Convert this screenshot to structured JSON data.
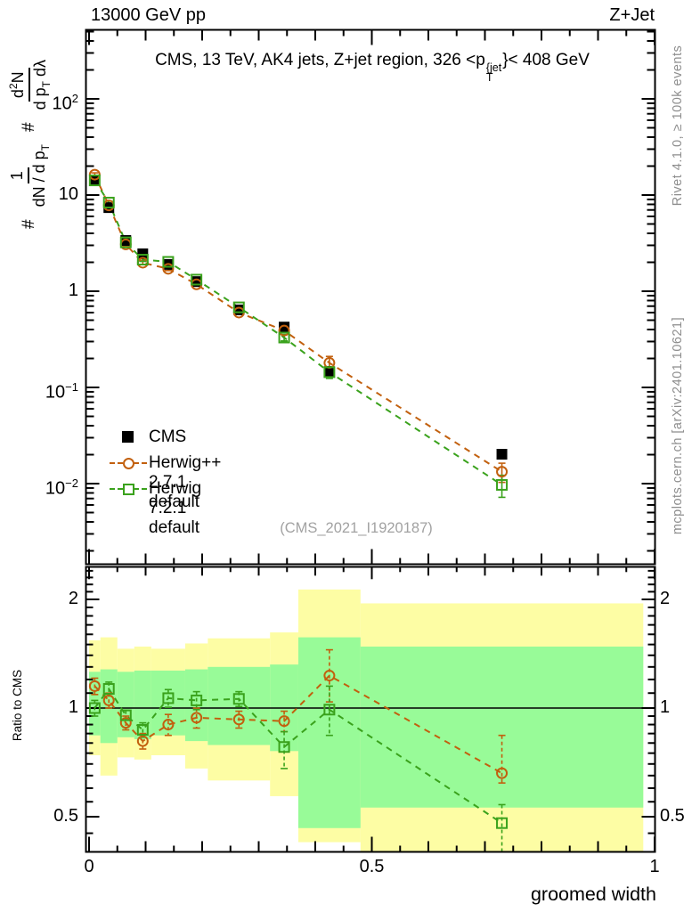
{
  "header": {
    "left": "13000 GeV pp",
    "right": "Z+Jet"
  },
  "title": {
    "pre": "CMS, 13 TeV, AK4 jets, Z+jet region, 326 <p",
    "sup": "{jet",
    "sub": "T",
    "post": "}< 408 GeV"
  },
  "ylabel": {
    "hash1": "#",
    "frac1_num": "1",
    "frac1_den_pre": "dN / d p",
    "frac1_den_sub": "T",
    "hash2": "#",
    "frac2_num_pre": "d",
    "frac2_num_sup": "2",
    "frac2_num_post": "N",
    "frac2_den_pre": "d p",
    "frac2_den_sub": "T",
    "frac2_den_post": " dλ"
  },
  "xlabel": "groomed width",
  "ratio_label": "Ratio to CMS",
  "watermark": "(CMS_2021_I1920187)",
  "side": {
    "top": "Rivet 4.1.0, ≥ 100k events",
    "bottom": "mcplots.cern.ch [arXiv:2401.10621]"
  },
  "legend": [
    {
      "label": "CMS",
      "marker": "filled-square",
      "color": "#000000"
    },
    {
      "label": "Herwig++ 2.7.1 default",
      "marker": "open-circle",
      "color": "#c2600e"
    },
    {
      "label": "Herwig 7.2.1 default",
      "marker": "open-square",
      "color": "#3aa21c"
    }
  ],
  "colors": {
    "cms": "#000000",
    "herwigpp": "#c2600e",
    "herwig7": "#3aa21c",
    "band_yellow": "#fdfda4",
    "band_green": "#98fb98",
    "gray_text": "#8e8e8e",
    "watermark_gray": "#a2a2a2"
  },
  "axis_labels": {
    "y_main": [
      {
        "v": 100,
        "base": "10",
        "exp": "2"
      },
      {
        "v": 10,
        "base": "10",
        "exp": ""
      },
      {
        "v": 1,
        "base": "1",
        "exp": ""
      },
      {
        "v": 0.1,
        "base": "10",
        "exp": "−1"
      },
      {
        "v": 0.01,
        "base": "10",
        "exp": "−2"
      }
    ],
    "y_ratio": [
      {
        "v": 2,
        "label": "2"
      },
      {
        "v": 1,
        "label": "1"
      },
      {
        "v": 0.5,
        "label": "0.5"
      }
    ],
    "x": [
      {
        "v": 0,
        "label": "0"
      },
      {
        "v": 0.5,
        "label": "0.5"
      },
      {
        "v": 1,
        "label": "1"
      }
    ]
  },
  "chart_data": {
    "type": "scatter",
    "title": "CMS, 13 TeV, AK4 jets, Z+jet region, 326 < pT{jet} < 408 GeV",
    "xlabel": "groomed width",
    "ylabel": "# 1/(dN/dpT) # d2N/(dpT dlambda)",
    "x_range": [
      0,
      1
    ],
    "y_main_log_range": [
      0.0015,
      525
    ],
    "y_ratio_log_range": [
      0.4,
      2.46
    ],
    "bin_centers": [
      0.01,
      0.035,
      0.065,
      0.095,
      0.14,
      0.19,
      0.265,
      0.345,
      0.425,
      0.73
    ],
    "bin_edges": [
      0,
      0.02,
      0.05,
      0.08,
      0.11,
      0.17,
      0.21,
      0.32,
      0.37,
      0.48,
      0.98
    ],
    "series": [
      {
        "name": "CMS",
        "style": "filled-square",
        "connect": false,
        "values": [
          14.2,
          7.4,
          3.37,
          2.45,
          1.9,
          1.26,
          0.64,
          0.424,
          0.146,
          0.0202
        ],
        "yerr": [
          0.6,
          0.25,
          0.1,
          0.08,
          0.06,
          0.04,
          0.02,
          0.015,
          0.01,
          0.0015
        ]
      },
      {
        "name": "Herwig++ 2.7.1 default",
        "style": "open-circle",
        "connect": true,
        "values": [
          16.3,
          7.8,
          3.07,
          1.98,
          1.71,
          1.18,
          0.6,
          0.39,
          0.18,
          0.0133
        ],
        "yerr": [
          0.7,
          0.3,
          0.12,
          0.09,
          0.07,
          0.05,
          0.025,
          0.02,
          0.03,
          0.003
        ],
        "ratio": [
          1.15,
          1.05,
          0.91,
          0.81,
          0.9,
          0.94,
          0.93,
          0.92,
          1.23,
          0.66
        ],
        "ratio_err_up": [
          0.06,
          0.05,
          0.04,
          0.04,
          0.06,
          0.06,
          0.05,
          0.06,
          0.22,
          0.18
        ],
        "ratio_err_dn": [
          0.06,
          0.05,
          0.04,
          0.04,
          0.06,
          0.06,
          0.05,
          0.06,
          0.19,
          0.04
        ]
      },
      {
        "name": "Herwig 7.2.1 default",
        "style": "open-square",
        "connect": true,
        "values": [
          14.2,
          8.35,
          3.22,
          2.13,
          2.02,
          1.32,
          0.68,
          0.33,
          0.144,
          0.0097
        ],
        "yerr": [
          0.6,
          0.3,
          0.12,
          0.09,
          0.07,
          0.05,
          0.025,
          0.025,
          0.02,
          0.0025
        ],
        "ratio": [
          1.0,
          1.13,
          0.955,
          0.87,
          1.065,
          1.05,
          1.06,
          0.78,
          0.99,
          0.48
        ],
        "ratio_err_up": [
          0.05,
          0.05,
          0.03,
          0.04,
          0.06,
          0.06,
          0.05,
          0.08,
          0.16,
          0.06
        ],
        "ratio_err_dn": [
          0.05,
          0.05,
          0.03,
          0.04,
          0.06,
          0.06,
          0.05,
          0.1,
          0.15,
          0.1
        ]
      }
    ],
    "ratio_bands": {
      "yellow": [
        [
          0.74,
          1.54
        ],
        [
          0.65,
          1.57
        ],
        [
          0.73,
          1.46
        ],
        [
          0.72,
          1.48
        ],
        [
          0.74,
          1.46
        ],
        [
          0.68,
          1.51
        ],
        [
          0.63,
          1.56
        ],
        [
          0.57,
          1.62
        ],
        [
          0.425,
          2.13
        ],
        [
          0.4,
          1.95
        ]
      ],
      "green": [
        [
          0.84,
          1.26
        ],
        [
          0.8,
          1.28
        ],
        [
          0.83,
          1.26
        ],
        [
          0.82,
          1.27
        ],
        [
          0.84,
          1.27
        ],
        [
          0.81,
          1.28
        ],
        [
          0.79,
          1.3
        ],
        [
          0.76,
          1.32
        ],
        [
          0.465,
          1.57
        ],
        [
          0.53,
          1.48
        ]
      ]
    },
    "reference_line": 1,
    "legend_position": "lower-left-of-main-panel",
    "grid": false
  }
}
